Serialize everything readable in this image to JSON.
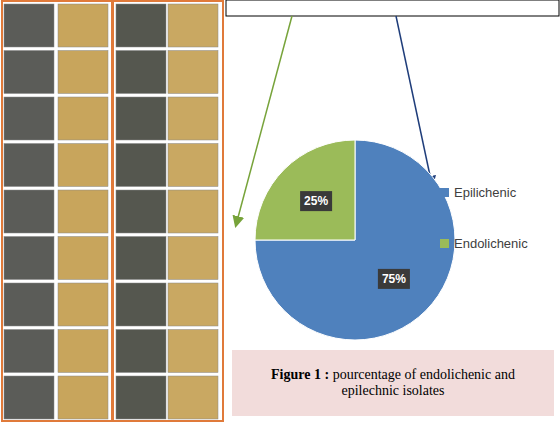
{
  "chart_data": {
    "type": "pie",
    "title": "Figure 1 : pourcentage of endolichenic and epilechnic isolates",
    "categories": [
      "Epilichenic",
      "Endolichenic"
    ],
    "values": [
      75,
      25
    ],
    "value_labels": [
      "75%",
      "25%"
    ],
    "colors": [
      "#4f81bd",
      "#9bbb59"
    ],
    "data_labels": true,
    "legend": "right"
  }
}
